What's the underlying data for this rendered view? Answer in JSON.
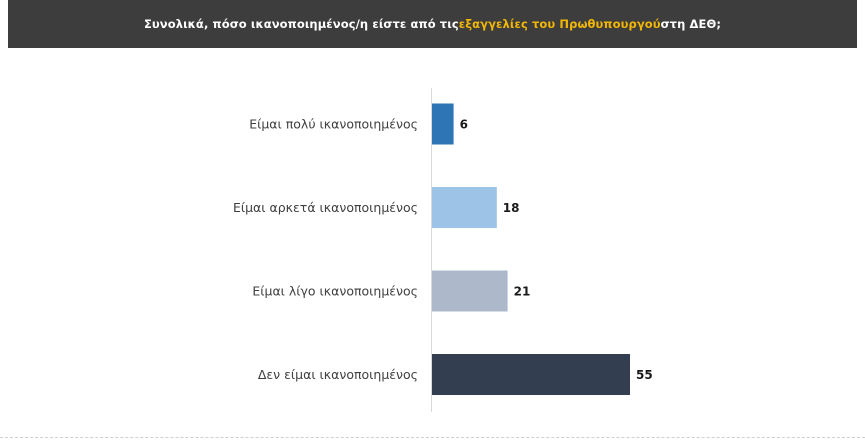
{
  "header": {
    "title_before": "Συνολικά, πόσο ικανοποιημένος/η είστε από τις ",
    "title_highlight": "εξαγγελίες του Πρωθυπουργού",
    "title_after": " στη ΔΕΘ;",
    "highlight_color": "#f2b705",
    "background_color": "#3d3d3d"
  },
  "chart_data": {
    "type": "bar",
    "orientation": "horizontal",
    "title": "Συνολικά, πόσο ικανοποιημένος/η είστε από τις εξαγγελίες του Πρωθυπουργού στη ΔΕΘ;",
    "categories": [
      "Είμαι πολύ ικανοποιημένος",
      "Είμαι αρκετά ικανοποιημένος",
      "Είμαι λίγο ικανοποιημένος",
      "Δεν είμαι ικανοποιημένος"
    ],
    "values": [
      6,
      18,
      21,
      55
    ],
    "colors": [
      "#2e75b6",
      "#9dc3e6",
      "#adb9ca",
      "#333f50"
    ],
    "xlim": [
      0,
      55
    ],
    "grid": false,
    "legend": "none",
    "data_labels": true
  }
}
